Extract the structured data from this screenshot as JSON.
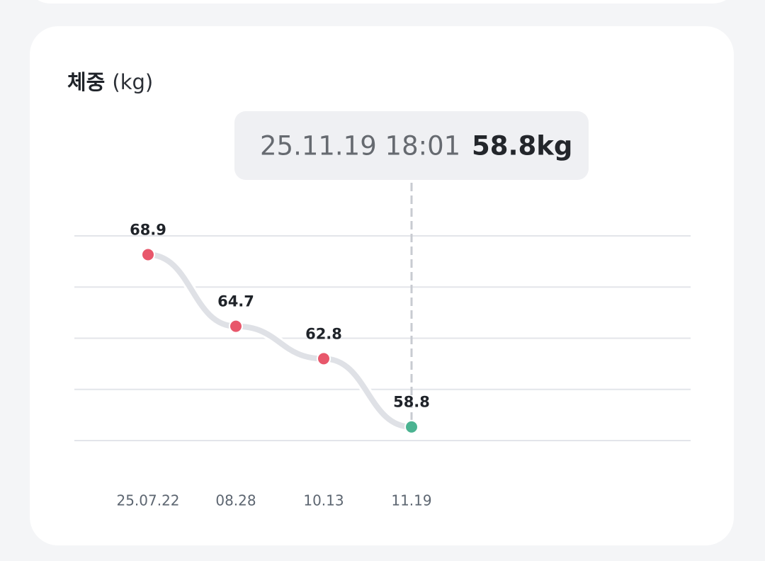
{
  "chart_data": {
    "type": "line",
    "title": "체중",
    "unit": "(kg)",
    "categories": [
      "25.07.22",
      "08.28",
      "10.13",
      "11.19"
    ],
    "series": [
      {
        "values": [
          68.9,
          64.7,
          62.8,
          58.8
        ],
        "color": "#dfe1e6",
        "point_colors": [
          "#e8576b",
          "#e8576b",
          "#e8576b",
          "#4bb391"
        ]
      }
    ],
    "ylim": [
      58,
      70
    ],
    "yticks": [
      58,
      61,
      64,
      67,
      70
    ],
    "grid": true,
    "tooltip": {
      "time": "25.11.19 18:01",
      "value": "58.8kg"
    }
  }
}
